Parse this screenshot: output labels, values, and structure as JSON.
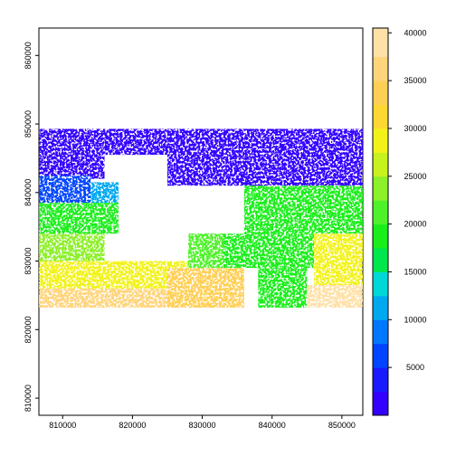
{
  "chart_data": {
    "type": "heatmap",
    "title": "",
    "xlabel": "",
    "ylabel": "",
    "xlim": [
      806600,
      853000
    ],
    "ylim": [
      807500,
      864000
    ],
    "x_ticks": [
      810000,
      820000,
      830000,
      840000,
      850000
    ],
    "x_tick_labels": [
      "810000",
      "820000",
      "830000",
      "840000",
      "850000"
    ],
    "y_ticks": [
      810000,
      820000,
      830000,
      840000,
      850000,
      860000
    ],
    "y_tick_labels": [
      "810000",
      "820000",
      "830000",
      "840000",
      "850000",
      "860000"
    ],
    "raster_extent": {
      "xmin": 806600,
      "xmax": 853000,
      "ymin": 823200,
      "ymax": 849300
    },
    "legend": {
      "placement": "right",
      "range": [
        0,
        40500
      ],
      "ticks": [
        5000,
        10000,
        15000,
        20000,
        25000,
        30000,
        35000,
        40000
      ],
      "tick_labels": [
        "5000",
        "10000",
        "15000",
        "20000",
        "25000",
        "30000",
        "35000",
        "40000"
      ],
      "bands": [
        {
          "from": 0,
          "to": 2500,
          "color": "#3300ff"
        },
        {
          "from": 2500,
          "to": 5000,
          "color": "#1a1aff"
        },
        {
          "from": 5000,
          "to": 7500,
          "color": "#0044ff"
        },
        {
          "from": 7500,
          "to": 10000,
          "color": "#0077ff"
        },
        {
          "from": 10000,
          "to": 12500,
          "color": "#00a8f0"
        },
        {
          "from": 12500,
          "to": 15000,
          "color": "#00d8d8"
        },
        {
          "from": 15000,
          "to": 17500,
          "color": "#00e64d"
        },
        {
          "from": 17500,
          "to": 20000,
          "color": "#1aee1a"
        },
        {
          "from": 20000,
          "to": 22500,
          "color": "#4ff22a"
        },
        {
          "from": 22500,
          "to": 25000,
          "color": "#8cf02a"
        },
        {
          "from": 25000,
          "to": 27500,
          "color": "#c8f21f"
        },
        {
          "from": 27500,
          "to": 30000,
          "color": "#f2f21a"
        },
        {
          "from": 30000,
          "to": 32500,
          "color": "#ffd733"
        },
        {
          "from": 32500,
          "to": 35000,
          "color": "#ffcf55"
        },
        {
          "from": 35000,
          "to": 37500,
          "color": "#ffd47a"
        },
        {
          "from": 37500,
          "to": 40500,
          "color": "#ffe0a6"
        }
      ]
    },
    "regions": [
      {
        "x": [
          806600,
          816000
        ],
        "y": [
          842000,
          849300
        ],
        "value": 1500
      },
      {
        "x": [
          816000,
          828000
        ],
        "y": [
          845500,
          849300
        ],
        "value": 1500
      },
      {
        "x": [
          825000,
          853000
        ],
        "y": [
          841000,
          849300
        ],
        "value": 1200
      },
      {
        "x": [
          806600,
          814000
        ],
        "y": [
          838500,
          842500
        ],
        "value": 6500
      },
      {
        "x": [
          814000,
          818000
        ],
        "y": [
          838500,
          841500
        ],
        "value": 11500
      },
      {
        "x": [
          806600,
          818000
        ],
        "y": [
          834000,
          838500
        ],
        "value": 19000
      },
      {
        "x": [
          806600,
          816000
        ],
        "y": [
          830000,
          834000
        ],
        "value": 24500
      },
      {
        "x": [
          806600,
          830000
        ],
        "y": [
          826000,
          830000
        ],
        "value": 28500
      },
      {
        "x": [
          806600,
          826000
        ],
        "y": [
          823200,
          826000
        ],
        "value": 37000
      },
      {
        "x": [
          836000,
          853000
        ],
        "y": [
          834000,
          841000
        ],
        "value": 18500
      },
      {
        "x": [
          828000,
          846000
        ],
        "y": [
          829000,
          834000
        ],
        "value": 18500
      },
      {
        "x": [
          838000,
          845000
        ],
        "y": [
          823200,
          829000
        ],
        "value": 18500
      },
      {
        "x": [
          828000,
          833000
        ],
        "y": [
          829000,
          834000
        ],
        "value": 22000
      },
      {
        "x": [
          825000,
          836000
        ],
        "y": [
          823200,
          829000
        ],
        "value": 33000
      },
      {
        "x": [
          846000,
          853000
        ],
        "y": [
          826500,
          834000
        ],
        "value": 29000
      },
      {
        "x": [
          845000,
          853000
        ],
        "y": [
          823200,
          826500
        ],
        "value": 37500
      }
    ]
  }
}
